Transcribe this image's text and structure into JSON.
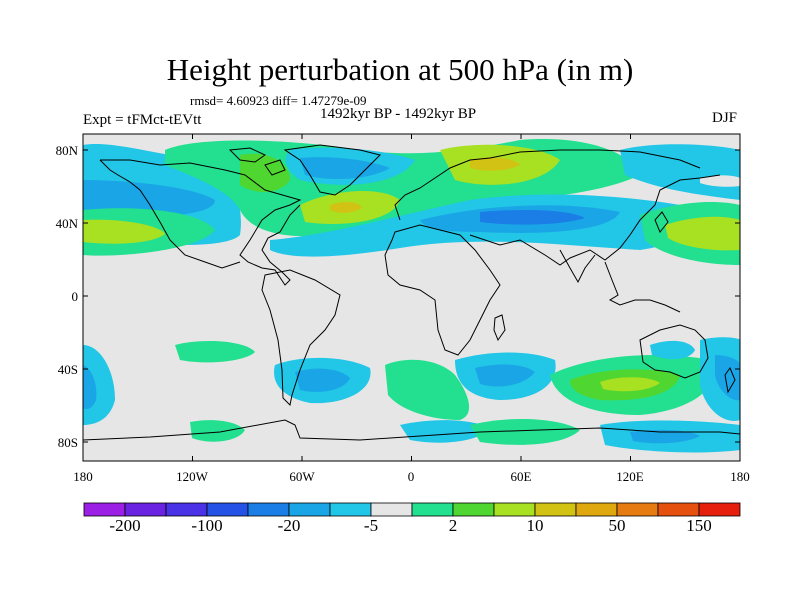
{
  "title": "Height perturbation at 500 hPa (in m)",
  "stats": "rmsd= 4.60923 diff= 1.47279e-09",
  "left_label": "Expt = tFMct-tEVtt",
  "center_label": "1492kyr BP - 1492kyr BP",
  "right_label": "DJF",
  "lat_ticks": [
    "80N",
    "40N",
    "0",
    "40S",
    "80S"
  ],
  "lon_ticks": [
    "180",
    "120W",
    "60W",
    "0",
    "60E",
    "120E",
    "180"
  ],
  "colorbar": {
    "colors": [
      "#9c1fe6",
      "#6a23e0",
      "#4a33e6",
      "#2552e6",
      "#1a7ee6",
      "#1aa6e6",
      "#22c6e6",
      "#e6e6e6",
      "#22e08f",
      "#50d630",
      "#a8e022",
      "#d2c214",
      "#dfa80f",
      "#e67b12",
      "#e6500f",
      "#e61e0c"
    ],
    "labels": [
      "-200",
      "-100",
      "-20",
      "-5",
      "2",
      "10",
      "50",
      "150"
    ]
  }
}
